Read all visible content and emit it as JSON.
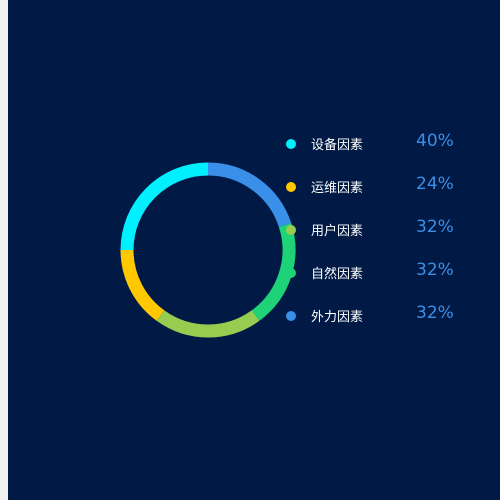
{
  "chart_data": {
    "type": "pie",
    "style": "donut",
    "legend_position": "right",
    "categories": [
      "设备因素",
      "运维因素",
      "用户因素",
      "自然因素",
      "外力因素"
    ],
    "values": [
      40,
      24,
      32,
      32,
      32
    ],
    "value_labels": [
      "40%",
      "24%",
      "32%",
      "32%",
      "32%"
    ],
    "colors": [
      "#00f0ff",
      "#ffc800",
      "#96cd50",
      "#1ed278",
      "#3a8fe8"
    ],
    "slice_order_clockwise_from_top": [
      "外力因素",
      "自然因素",
      "用户因素",
      "运维因素",
      "设备因素"
    ]
  },
  "page": {
    "background": "#001a45",
    "text_color": "#ffffff",
    "value_color": "#3a8fe8"
  }
}
